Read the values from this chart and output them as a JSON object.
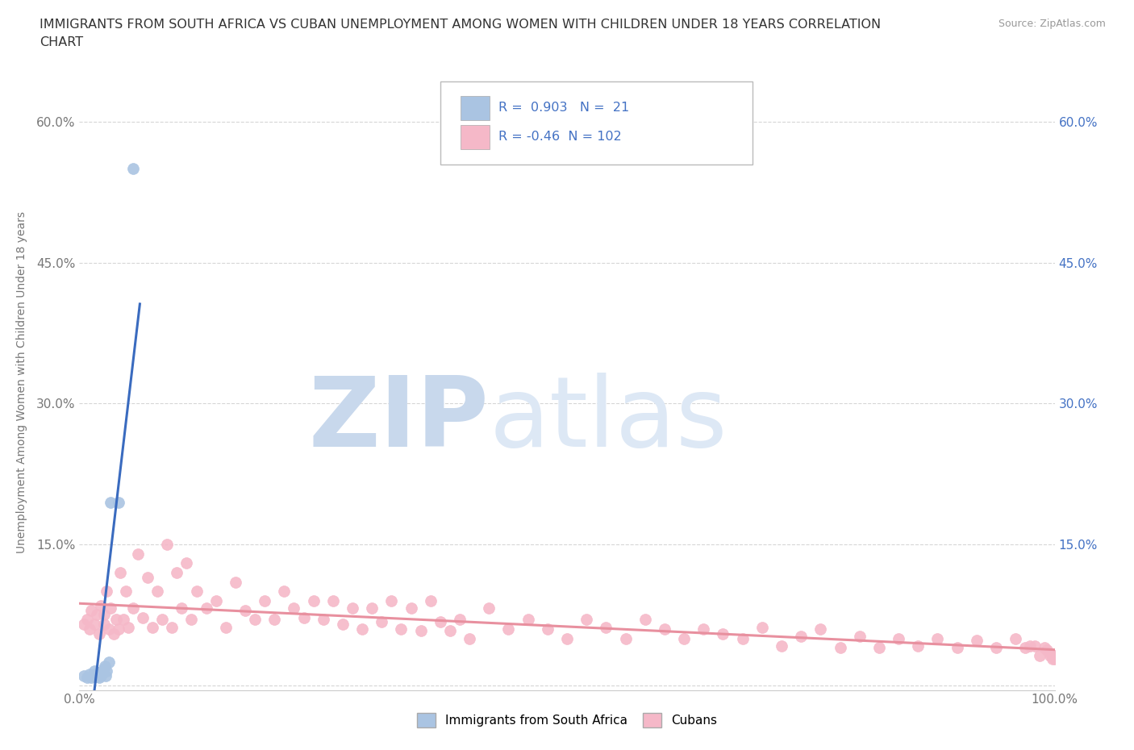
{
  "title_line1": "IMMIGRANTS FROM SOUTH AFRICA VS CUBAN UNEMPLOYMENT AMONG WOMEN WITH CHILDREN UNDER 18 YEARS CORRELATION",
  "title_line2": "CHART",
  "source": "Source: ZipAtlas.com",
  "ylabel": "Unemployment Among Women with Children Under 18 years",
  "xlim": [
    0.0,
    1.0
  ],
  "ylim": [
    -0.005,
    0.65
  ],
  "yticks": [
    0.0,
    0.15,
    0.3,
    0.45,
    0.6
  ],
  "ytick_labels_left": [
    "",
    "15.0%",
    "30.0%",
    "45.0%",
    "60.0%"
  ],
  "ytick_labels_right": [
    "",
    "15.0%",
    "30.0%",
    "45.0%",
    "60.0%"
  ],
  "xtick_left": 0.0,
  "xtick_right": 1.0,
  "xtick_label_left": "0.0%",
  "xtick_label_right": "100.0%",
  "blue_R": 0.903,
  "blue_N": 21,
  "pink_R": -0.46,
  "pink_N": 102,
  "blue_color": "#aac4e2",
  "blue_edge_color": "#aac4e2",
  "blue_line_color": "#3a6bbf",
  "pink_color": "#f5b8c8",
  "pink_edge_color": "#f5b8c8",
  "pink_line_color": "#e8909f",
  "watermark_zip": "ZIP",
  "watermark_atlas": "atlas",
  "watermark_color": "#dce8f5",
  "background_color": "#ffffff",
  "legend_blue_label": "Immigrants from South Africa",
  "legend_pink_label": "Cubans",
  "blue_scatter_x": [
    0.005,
    0.008,
    0.01,
    0.012,
    0.013,
    0.015,
    0.015,
    0.018,
    0.02,
    0.02,
    0.022,
    0.023,
    0.024,
    0.025,
    0.026,
    0.027,
    0.028,
    0.03,
    0.032,
    0.04,
    0.055
  ],
  "blue_scatter_y": [
    0.01,
    0.008,
    0.012,
    0.008,
    0.01,
    0.012,
    0.015,
    0.009,
    0.01,
    0.008,
    0.01,
    0.012,
    0.015,
    0.018,
    0.02,
    0.01,
    0.015,
    0.025,
    0.195,
    0.195,
    0.55
  ],
  "pink_scatter_x": [
    0.005,
    0.008,
    0.01,
    0.012,
    0.015,
    0.018,
    0.02,
    0.022,
    0.025,
    0.025,
    0.028,
    0.03,
    0.032,
    0.035,
    0.038,
    0.04,
    0.042,
    0.045,
    0.048,
    0.05,
    0.055,
    0.06,
    0.065,
    0.07,
    0.075,
    0.08,
    0.085,
    0.09,
    0.095,
    0.1,
    0.105,
    0.11,
    0.115,
    0.12,
    0.13,
    0.14,
    0.15,
    0.16,
    0.17,
    0.18,
    0.19,
    0.2,
    0.21,
    0.22,
    0.23,
    0.24,
    0.25,
    0.26,
    0.27,
    0.28,
    0.29,
    0.3,
    0.31,
    0.32,
    0.33,
    0.34,
    0.35,
    0.36,
    0.37,
    0.38,
    0.39,
    0.4,
    0.42,
    0.44,
    0.46,
    0.48,
    0.5,
    0.52,
    0.54,
    0.56,
    0.58,
    0.6,
    0.62,
    0.64,
    0.66,
    0.68,
    0.7,
    0.72,
    0.74,
    0.76,
    0.78,
    0.8,
    0.82,
    0.84,
    0.86,
    0.88,
    0.9,
    0.92,
    0.94,
    0.96,
    0.97,
    0.975,
    0.98,
    0.985,
    0.99,
    0.992,
    0.995,
    0.997,
    0.998,
    0.999,
    1.0,
    1.0
  ],
  "pink_scatter_y": [
    0.065,
    0.07,
    0.06,
    0.08,
    0.065,
    0.075,
    0.055,
    0.085,
    0.065,
    0.075,
    0.1,
    0.06,
    0.082,
    0.055,
    0.07,
    0.06,
    0.12,
    0.07,
    0.1,
    0.062,
    0.082,
    0.14,
    0.072,
    0.115,
    0.062,
    0.1,
    0.07,
    0.15,
    0.062,
    0.12,
    0.082,
    0.13,
    0.07,
    0.1,
    0.082,
    0.09,
    0.062,
    0.11,
    0.08,
    0.07,
    0.09,
    0.07,
    0.1,
    0.082,
    0.072,
    0.09,
    0.07,
    0.09,
    0.065,
    0.082,
    0.06,
    0.082,
    0.068,
    0.09,
    0.06,
    0.082,
    0.058,
    0.09,
    0.068,
    0.058,
    0.07,
    0.05,
    0.082,
    0.06,
    0.07,
    0.06,
    0.05,
    0.07,
    0.062,
    0.05,
    0.07,
    0.06,
    0.05,
    0.06,
    0.055,
    0.05,
    0.062,
    0.042,
    0.052,
    0.06,
    0.04,
    0.052,
    0.04,
    0.05,
    0.042,
    0.05,
    0.04,
    0.048,
    0.04,
    0.05,
    0.04,
    0.042,
    0.042,
    0.032,
    0.04,
    0.038,
    0.032,
    0.032,
    0.028,
    0.03,
    0.028,
    0.032
  ]
}
